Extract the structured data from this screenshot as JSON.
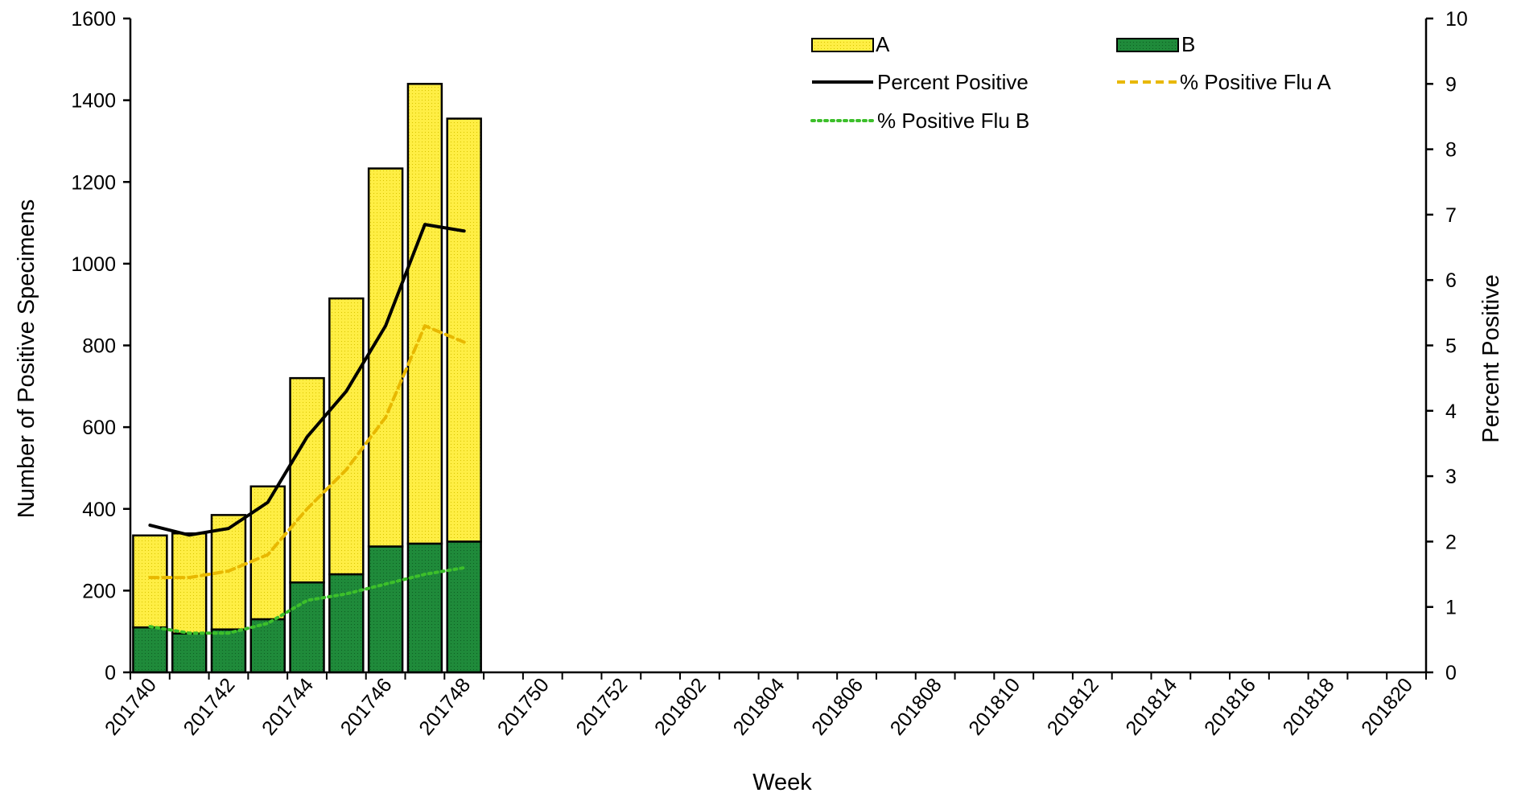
{
  "chart_data": {
    "type": "bar",
    "stacked": true,
    "x_label": "Week",
    "y_label": "Number of Positive Specimens",
    "y2_label": "Percent Positive",
    "y_range": [
      0,
      1600
    ],
    "y_ticks": [
      "0",
      "200",
      "400",
      "600",
      "800",
      "1000",
      "1200",
      "1400",
      "1600"
    ],
    "y2_range": [
      0,
      10
    ],
    "y2_ticks": [
      "0",
      "1",
      "2",
      "3",
      "4",
      "5",
      "6",
      "7",
      "8",
      "9",
      "10"
    ],
    "x_tick_labels": [
      "201740",
      "201742",
      "201744",
      "201746",
      "201748",
      "201750",
      "201752",
      "201802",
      "201804",
      "201806",
      "201808",
      "201810",
      "201812",
      "201814",
      "201816",
      "201818",
      "201820"
    ],
    "x_slots": 33,
    "weeks": [
      "201740",
      "201741",
      "201742",
      "201743",
      "201744",
      "201745",
      "201746",
      "201747",
      "201748"
    ],
    "bar_series": [
      {
        "name": "A",
        "color": "#ffee44",
        "values": [
          225,
          245,
          280,
          325,
          500,
          675,
          925,
          1125,
          1035
        ]
      },
      {
        "name": "B",
        "color": "#1f8a3a",
        "values": [
          110,
          95,
          105,
          130,
          220,
          240,
          308,
          315,
          320
        ]
      }
    ],
    "line_series": [
      {
        "name": "Percent Positive",
        "color": "#000000",
        "dash": "solid",
        "values": [
          2.25,
          2.1,
          2.2,
          2.6,
          3.6,
          4.3,
          5.3,
          6.85,
          6.75
        ]
      },
      {
        "name": "% Positive Flu A",
        "color": "#e8b800",
        "dash": "dashed",
        "values": [
          1.45,
          1.45,
          1.55,
          1.8,
          2.5,
          3.1,
          3.9,
          5.3,
          5.05
        ]
      },
      {
        "name": "% Positive Flu B",
        "color": "#3cbf2a",
        "dash": "dotted",
        "values": [
          0.7,
          0.6,
          0.6,
          0.75,
          1.1,
          1.2,
          1.35,
          1.5,
          1.6
        ]
      }
    ],
    "grid": false,
    "legend_position": "top-right"
  }
}
